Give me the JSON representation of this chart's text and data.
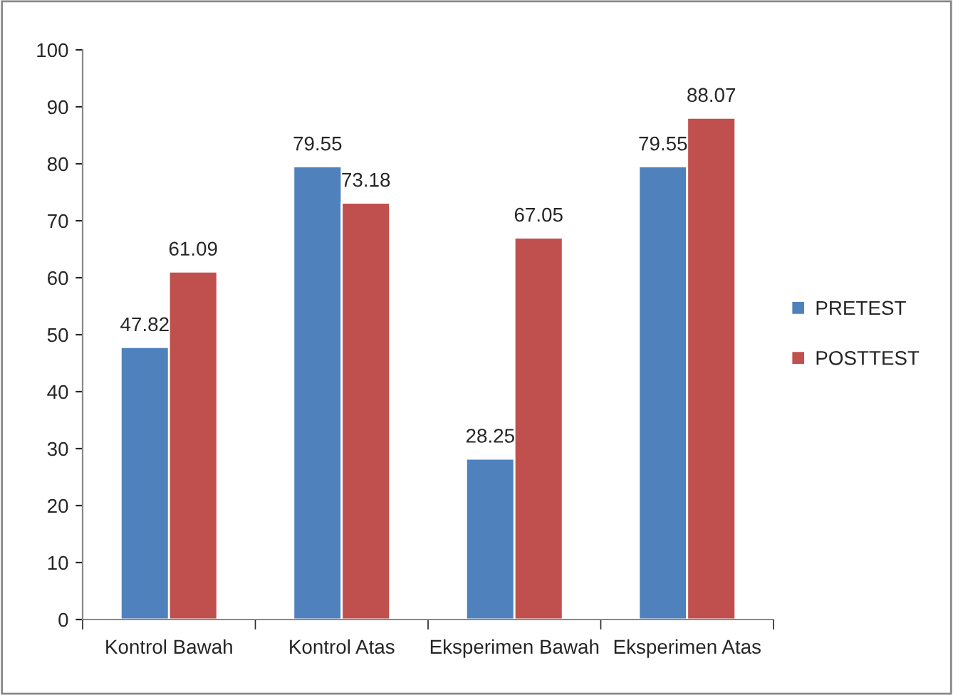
{
  "chart_data": {
    "type": "bar",
    "categories": [
      "Kontrol Bawah",
      "Kontrol Atas",
      "Eksperimen Bawah",
      "Eksperimen Atas"
    ],
    "series": [
      {
        "name": "PRETEST",
        "color": "#4f81bd",
        "values": [
          47.82,
          79.55,
          28.25,
          79.55
        ]
      },
      {
        "name": "POSTTEST",
        "color": "#c0504d",
        "values": [
          61.09,
          73.18,
          67.05,
          88.07
        ]
      }
    ],
    "ylim": [
      0,
      100
    ],
    "yticks": [
      0,
      10,
      20,
      30,
      40,
      50,
      60,
      70,
      80,
      90,
      100
    ],
    "data_labels": true,
    "legend": "right",
    "grid": false
  }
}
